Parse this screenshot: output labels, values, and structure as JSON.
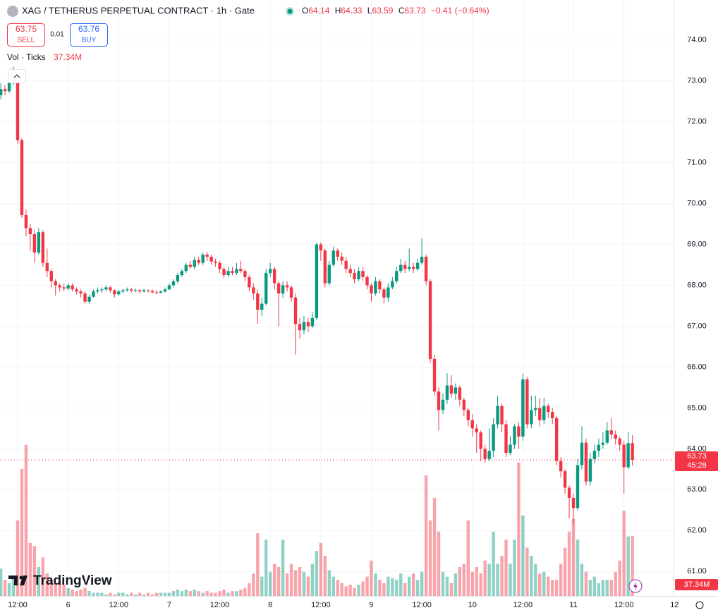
{
  "header": {
    "symbol": "XAG / TETHERUS PERPETUAL CONTRACT · 1h · Gate",
    "open_label": "O",
    "open": 64.14,
    "high_label": "H",
    "high": 64.33,
    "low_label": "L",
    "low": 63.59,
    "close_label": "C",
    "close": 63.73,
    "change": "−0.41 (−0.64%)"
  },
  "trade": {
    "sell_price": 63.75,
    "sell": "SELL",
    "spread": 0.01,
    "buy_price": 63.76,
    "buy": "BUY"
  },
  "volume_legend": {
    "label": "Vol · Ticks",
    "value": "37.34M"
  },
  "countdown": "45:28",
  "logo": "TradingView",
  "chart_data": {
    "type": "candlestick",
    "ylim": [
      60.4,
      74.98
    ],
    "yticks": [
      {
        "value": 61,
        "label": "61.00"
      },
      {
        "value": 62,
        "label": "62.00"
      },
      {
        "value": 63,
        "label": "63.00"
      },
      {
        "value": 64,
        "label": "64.00"
      },
      {
        "value": 65,
        "label": "65.00"
      },
      {
        "value": 66,
        "label": "66.00"
      },
      {
        "value": 67,
        "label": "67.00"
      },
      {
        "value": 68,
        "label": "68.00"
      },
      {
        "value": 69,
        "label": "69.00"
      },
      {
        "value": 70,
        "label": "70.00"
      },
      {
        "value": 71,
        "label": "71.00"
      },
      {
        "value": 72,
        "label": "72.00"
      },
      {
        "value": 73,
        "label": "73.00"
      },
      {
        "value": 74,
        "label": "74.00"
      }
    ],
    "xticks": [
      {
        "value": 4,
        "label": "12:00"
      },
      {
        "value": 16,
        "label": "6"
      },
      {
        "value": 28,
        "label": "12:00"
      },
      {
        "value": 40,
        "label": "7"
      },
      {
        "value": 52,
        "label": "12:00"
      },
      {
        "value": 64,
        "label": "8"
      },
      {
        "value": 76,
        "label": "12:00"
      },
      {
        "value": 88,
        "label": "9"
      },
      {
        "value": 100,
        "label": "12:00"
      },
      {
        "value": 112,
        "label": "10"
      },
      {
        "value": 124,
        "label": "12:00"
      },
      {
        "value": 136,
        "label": "11"
      },
      {
        "value": 148,
        "label": "12:00"
      },
      {
        "value": 160,
        "label": "12"
      }
    ],
    "up_color": "#089981",
    "down_color": "#f23645",
    "grid": true,
    "volume_lim": [
      0,
      100
    ],
    "ohlc": [
      [
        72.65,
        72.95,
        72.55,
        72.8
      ],
      [
        72.8,
        72.9,
        72.65,
        72.75
      ],
      [
        72.75,
        73.0,
        72.7,
        72.95
      ],
      [
        72.95,
        73.35,
        72.9,
        73.05
      ],
      [
        73.05,
        73.1,
        71.45,
        71.55
      ],
      [
        71.55,
        71.6,
        69.65,
        69.72
      ],
      [
        69.72,
        69.85,
        69.2,
        69.4
      ],
      [
        69.4,
        69.5,
        68.85,
        69.25
      ],
      [
        69.25,
        69.35,
        68.55,
        68.8
      ],
      [
        68.8,
        69.4,
        68.75,
        69.3
      ],
      [
        69.3,
        69.35,
        68.45,
        68.55
      ],
      [
        68.55,
        68.9,
        68.2,
        68.35
      ],
      [
        68.35,
        68.4,
        67.95,
        68.1
      ],
      [
        68.1,
        68.15,
        67.75,
        68.0
      ],
      [
        68.0,
        68.05,
        67.85,
        67.95
      ],
      [
        67.95,
        68.05,
        67.85,
        67.92
      ],
      [
        67.92,
        68.05,
        67.88,
        68.0
      ],
      [
        68.0,
        68.05,
        67.85,
        67.9
      ],
      [
        67.9,
        67.95,
        67.78,
        67.85
      ],
      [
        67.85,
        67.9,
        67.7,
        67.8
      ],
      [
        67.8,
        67.85,
        67.55,
        67.6
      ],
      [
        67.6,
        67.78,
        67.55,
        67.72
      ],
      [
        67.72,
        67.9,
        67.7,
        67.85
      ],
      [
        67.85,
        67.95,
        67.8,
        67.88
      ],
      [
        67.88,
        67.95,
        67.82,
        67.9
      ],
      [
        67.9,
        68.0,
        67.85,
        67.95
      ],
      [
        67.95,
        67.98,
        67.82,
        67.88
      ],
      [
        67.88,
        67.9,
        67.7,
        67.78
      ],
      [
        67.78,
        67.88,
        67.75,
        67.85
      ],
      [
        67.85,
        67.92,
        67.8,
        67.88
      ],
      [
        67.88,
        67.95,
        67.84,
        67.9
      ],
      [
        67.9,
        67.93,
        67.82,
        67.87
      ],
      [
        67.87,
        67.92,
        67.83,
        67.88
      ],
      [
        67.88,
        67.9,
        67.8,
        67.85
      ],
      [
        67.85,
        67.92,
        67.82,
        67.88
      ],
      [
        67.88,
        67.9,
        67.82,
        67.86
      ],
      [
        67.86,
        67.9,
        67.8,
        67.83
      ],
      [
        67.83,
        67.88,
        67.78,
        67.82
      ],
      [
        67.82,
        67.88,
        67.8,
        67.85
      ],
      [
        67.85,
        67.95,
        67.82,
        67.9
      ],
      [
        67.9,
        68.05,
        67.88,
        68.0
      ],
      [
        68.0,
        68.15,
        67.95,
        68.1
      ],
      [
        68.1,
        68.3,
        68.05,
        68.25
      ],
      [
        68.25,
        68.4,
        68.2,
        68.35
      ],
      [
        68.35,
        68.55,
        68.3,
        68.5
      ],
      [
        68.5,
        68.6,
        68.4,
        68.45
      ],
      [
        68.45,
        68.7,
        68.4,
        68.62
      ],
      [
        68.62,
        68.7,
        68.5,
        68.55
      ],
      [
        68.55,
        68.8,
        68.5,
        68.75
      ],
      [
        68.75,
        68.82,
        68.6,
        68.7
      ],
      [
        68.7,
        68.75,
        68.5,
        68.58
      ],
      [
        68.58,
        68.65,
        68.45,
        68.55
      ],
      [
        68.55,
        68.6,
        68.3,
        68.4
      ],
      [
        68.4,
        68.45,
        68.18,
        68.25
      ],
      [
        68.25,
        68.45,
        68.2,
        68.35
      ],
      [
        68.35,
        68.45,
        68.25,
        68.3
      ],
      [
        68.3,
        68.55,
        68.25,
        68.4
      ],
      [
        68.4,
        68.6,
        68.3,
        68.35
      ],
      [
        68.35,
        68.4,
        68.1,
        68.2
      ],
      [
        68.2,
        68.25,
        67.85,
        67.95
      ],
      [
        67.95,
        68.05,
        67.65,
        67.8
      ],
      [
        67.8,
        67.9,
        67.05,
        67.4
      ],
      [
        67.4,
        67.7,
        67.25,
        67.55
      ],
      [
        67.55,
        68.4,
        67.5,
        68.3
      ],
      [
        68.3,
        68.55,
        68.2,
        68.4
      ],
      [
        68.4,
        68.45,
        67.9,
        68.05
      ],
      [
        68.05,
        68.1,
        67.0,
        67.8
      ],
      [
        67.8,
        68.1,
        67.7,
        68.0
      ],
      [
        68.0,
        68.1,
        67.85,
        67.95
      ],
      [
        67.95,
        68.0,
        67.6,
        67.7
      ],
      [
        67.7,
        67.8,
        66.3,
        67.05
      ],
      [
        67.05,
        67.2,
        66.7,
        66.9
      ],
      [
        66.9,
        67.25,
        66.8,
        67.1
      ],
      [
        67.1,
        67.2,
        66.85,
        67.0
      ],
      [
        67.0,
        67.35,
        66.95,
        67.2
      ],
      [
        67.2,
        69.05,
        67.15,
        69.0
      ],
      [
        69.0,
        69.05,
        68.6,
        68.85
      ],
      [
        68.85,
        68.9,
        67.95,
        68.05
      ],
      [
        68.05,
        68.6,
        68.0,
        68.5
      ],
      [
        68.5,
        68.95,
        68.45,
        68.85
      ],
      [
        68.85,
        68.9,
        68.6,
        68.7
      ],
      [
        68.7,
        68.8,
        68.5,
        68.6
      ],
      [
        68.6,
        68.7,
        68.3,
        68.4
      ],
      [
        68.4,
        68.5,
        68.2,
        68.3
      ],
      [
        68.3,
        68.4,
        68.05,
        68.15
      ],
      [
        68.15,
        68.45,
        68.1,
        68.35
      ],
      [
        68.35,
        68.45,
        68.1,
        68.2
      ],
      [
        68.2,
        68.25,
        67.9,
        68.0
      ],
      [
        68.0,
        68.05,
        67.6,
        67.8
      ],
      [
        67.8,
        68.2,
        67.75,
        68.1
      ],
      [
        68.1,
        68.15,
        67.8,
        67.9
      ],
      [
        67.9,
        67.95,
        67.55,
        67.7
      ],
      [
        67.7,
        68.05,
        67.6,
        67.95
      ],
      [
        67.95,
        68.2,
        67.9,
        68.1
      ],
      [
        68.1,
        68.45,
        68.05,
        68.35
      ],
      [
        68.35,
        68.65,
        68.3,
        68.5
      ],
      [
        68.5,
        68.6,
        68.3,
        68.4
      ],
      [
        68.4,
        68.9,
        68.35,
        68.45
      ],
      [
        68.45,
        68.55,
        68.3,
        68.4
      ],
      [
        68.4,
        68.65,
        68.35,
        68.55
      ],
      [
        68.55,
        69.15,
        68.5,
        68.7
      ],
      [
        68.7,
        68.75,
        68.0,
        68.1
      ],
      [
        68.1,
        68.15,
        66.1,
        66.2
      ],
      [
        66.2,
        66.3,
        65.3,
        65.4
      ],
      [
        65.4,
        65.5,
        64.45,
        64.95
      ],
      [
        64.95,
        65.35,
        64.85,
        65.2
      ],
      [
        65.2,
        65.85,
        65.1,
        65.55
      ],
      [
        65.55,
        65.8,
        65.25,
        65.35
      ],
      [
        65.35,
        65.6,
        65.2,
        65.5
      ],
      [
        65.5,
        65.55,
        65.05,
        65.2
      ],
      [
        65.2,
        65.25,
        64.8,
        64.95
      ],
      [
        64.95,
        65.0,
        64.55,
        64.7
      ],
      [
        64.7,
        64.85,
        64.3,
        64.5
      ],
      [
        64.5,
        64.6,
        63.9,
        64.4
      ],
      [
        64.4,
        64.45,
        63.7,
        64.0
      ],
      [
        64.0,
        64.1,
        63.65,
        63.75
      ],
      [
        63.75,
        64.5,
        63.7,
        63.95
      ],
      [
        63.95,
        64.75,
        63.8,
        64.6
      ],
      [
        64.6,
        65.3,
        64.5,
        65.05
      ],
      [
        65.05,
        65.1,
        64.4,
        64.6
      ],
      [
        64.6,
        64.7,
        63.8,
        63.9
      ],
      [
        63.9,
        64.3,
        63.85,
        64.1
      ],
      [
        64.1,
        64.6,
        64.0,
        64.55
      ],
      [
        64.55,
        64.65,
        64.0,
        64.3
      ],
      [
        64.3,
        65.85,
        64.2,
        65.7
      ],
      [
        65.7,
        65.75,
        64.5,
        64.6
      ],
      [
        64.6,
        65.3,
        64.5,
        64.95
      ],
      [
        64.95,
        65.3,
        64.8,
        65.0
      ],
      [
        65.0,
        65.25,
        64.55,
        64.7
      ],
      [
        64.7,
        65.25,
        64.6,
        65.05
      ],
      [
        65.05,
        65.1,
        64.75,
        64.9
      ],
      [
        64.9,
        65.0,
        64.6,
        64.75
      ],
      [
        64.75,
        64.8,
        63.6,
        63.7
      ],
      [
        63.7,
        63.8,
        63.3,
        63.45
      ],
      [
        63.45,
        63.5,
        62.9,
        63.05
      ],
      [
        63.05,
        63.1,
        62.3,
        62.8
      ],
      [
        62.8,
        62.9,
        62.15,
        62.55
      ],
      [
        62.55,
        63.75,
        62.5,
        63.6
      ],
      [
        63.6,
        64.55,
        63.5,
        64.15
      ],
      [
        64.15,
        64.25,
        63.1,
        63.2
      ],
      [
        63.2,
        63.9,
        63.1,
        63.75
      ],
      [
        63.75,
        64.1,
        63.65,
        63.95
      ],
      [
        63.95,
        64.25,
        63.8,
        64.1
      ],
      [
        64.1,
        64.4,
        64.0,
        64.15
      ],
      [
        64.15,
        64.65,
        64.1,
        64.45
      ],
      [
        64.45,
        64.75,
        64.25,
        64.35
      ],
      [
        64.35,
        64.45,
        64.1,
        64.25
      ],
      [
        64.25,
        64.3,
        63.95,
        64.1
      ],
      [
        64.1,
        64.2,
        62.9,
        63.55
      ],
      [
        63.55,
        64.4,
        63.5,
        64.14
      ],
      [
        64.14,
        64.33,
        63.59,
        63.73
      ]
    ],
    "volume": [
      17,
      10,
      8,
      12,
      47,
      79,
      94,
      33,
      31,
      18,
      24,
      14,
      10,
      8,
      9,
      7,
      5,
      4,
      3,
      4,
      5,
      3,
      2,
      2,
      2,
      1,
      2,
      1,
      2,
      2,
      1,
      2,
      1,
      2,
      1,
      2,
      1,
      2,
      2,
      2,
      2,
      3,
      4,
      3,
      4,
      3,
      4,
      3,
      2,
      3,
      2,
      2,
      3,
      4,
      2,
      3,
      3,
      4,
      5,
      8,
      14,
      39,
      12,
      35,
      15,
      20,
      18,
      35,
      14,
      20,
      16,
      18,
      15,
      12,
      20,
      28,
      33,
      25,
      16,
      12,
      10,
      8,
      6,
      7,
      5,
      7,
      9,
      12,
      22,
      14,
      10,
      8,
      12,
      11,
      10,
      14,
      8,
      12,
      14,
      10,
      15,
      75,
      47,
      61,
      40,
      15,
      12,
      8,
      14,
      18,
      20,
      47,
      15,
      18,
      14,
      22,
      20,
      40,
      20,
      25,
      35,
      20,
      35,
      83,
      50,
      30,
      25,
      20,
      14,
      15,
      12,
      10,
      10,
      20,
      30,
      40,
      48,
      35,
      20,
      15,
      10,
      12,
      8,
      10,
      10,
      10,
      15,
      22,
      53,
      37,
      37.34
    ]
  }
}
